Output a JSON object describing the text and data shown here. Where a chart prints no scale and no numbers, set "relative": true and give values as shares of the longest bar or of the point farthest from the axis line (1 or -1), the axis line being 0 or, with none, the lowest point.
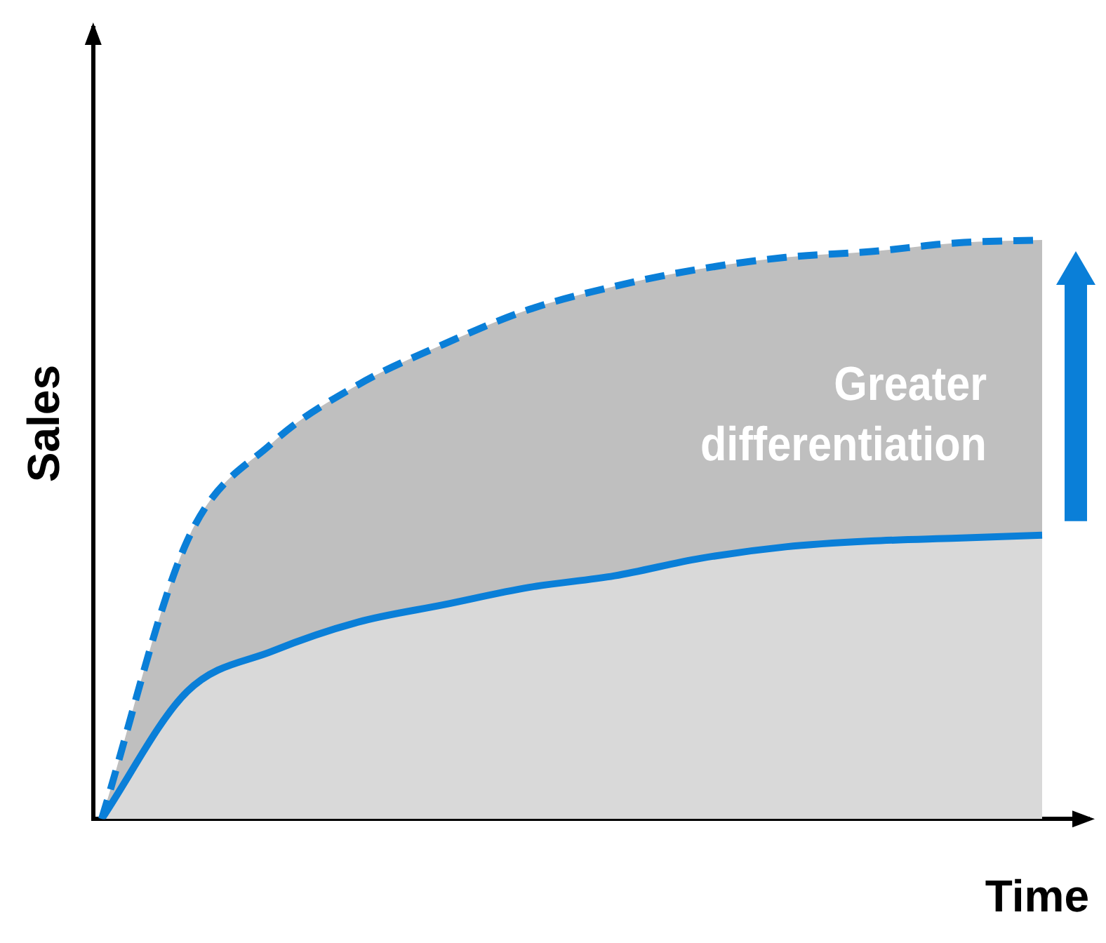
{
  "chart_data": {
    "type": "area",
    "relative": true,
    "xlabel": "Time",
    "ylabel": "Sales",
    "categories": [
      null,
      null,
      null,
      null,
      null,
      null,
      null,
      null,
      null,
      null,
      null,
      null
    ],
    "series": [
      {
        "color": "#0a7fd8",
        "line_style": "solid",
        "values": [
          0,
          0.22,
          0.29,
          0.34,
          0.37,
          0.4,
          0.42,
          0.45,
          0.47,
          0.48,
          0.485,
          0.49
        ]
      },
      {
        "color": "#0a7fd8",
        "line_style": "dashed",
        "values": [
          0,
          0.48,
          0.65,
          0.75,
          0.82,
          0.88,
          0.92,
          0.95,
          0.97,
          0.98,
          0.995,
          1
        ]
      }
    ],
    "annotations": [
      "Greater differentiation"
    ],
    "grid": false,
    "legend": false,
    "marker": "none"
  }
}
